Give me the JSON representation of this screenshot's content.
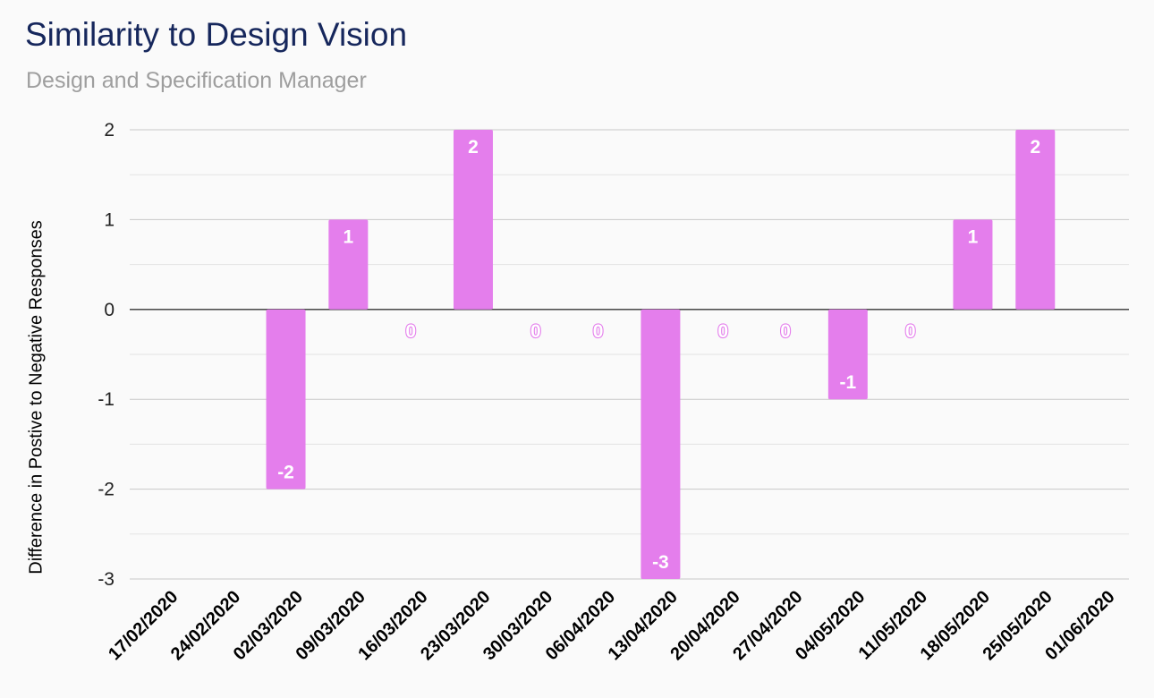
{
  "chart_data": {
    "type": "bar",
    "title": "Similarity to Design Vision",
    "subtitle": "Design and Specification Manager",
    "xlabel": "",
    "ylabel": "Difference in Postive to Negative Responses",
    "ylim": [
      -3,
      2
    ],
    "yticks": [
      2,
      1,
      0,
      -1,
      -2,
      -3
    ],
    "grid": true,
    "categories": [
      "17/02/2020",
      "24/02/2020",
      "02/03/2020",
      "09/03/2020",
      "16/03/2020",
      "23/03/2020",
      "30/03/2020",
      "06/04/2020",
      "13/04/2020",
      "20/04/2020",
      "27/04/2020",
      "04/05/2020",
      "11/05/2020",
      "18/05/2020",
      "25/05/2020",
      "01/06/2020"
    ],
    "values": [
      null,
      null,
      -2,
      1,
      0,
      2,
      0,
      0,
      -3,
      0,
      0,
      -1,
      0,
      1,
      2,
      null
    ],
    "data_labels": [
      "",
      "",
      "-2",
      "1",
      "0",
      "2",
      "0",
      "0",
      "-3",
      "0",
      "0",
      "-1",
      "0",
      "1",
      "2",
      ""
    ],
    "bar_color": "#e47eec",
    "label_color_inside": "#ffffff"
  }
}
